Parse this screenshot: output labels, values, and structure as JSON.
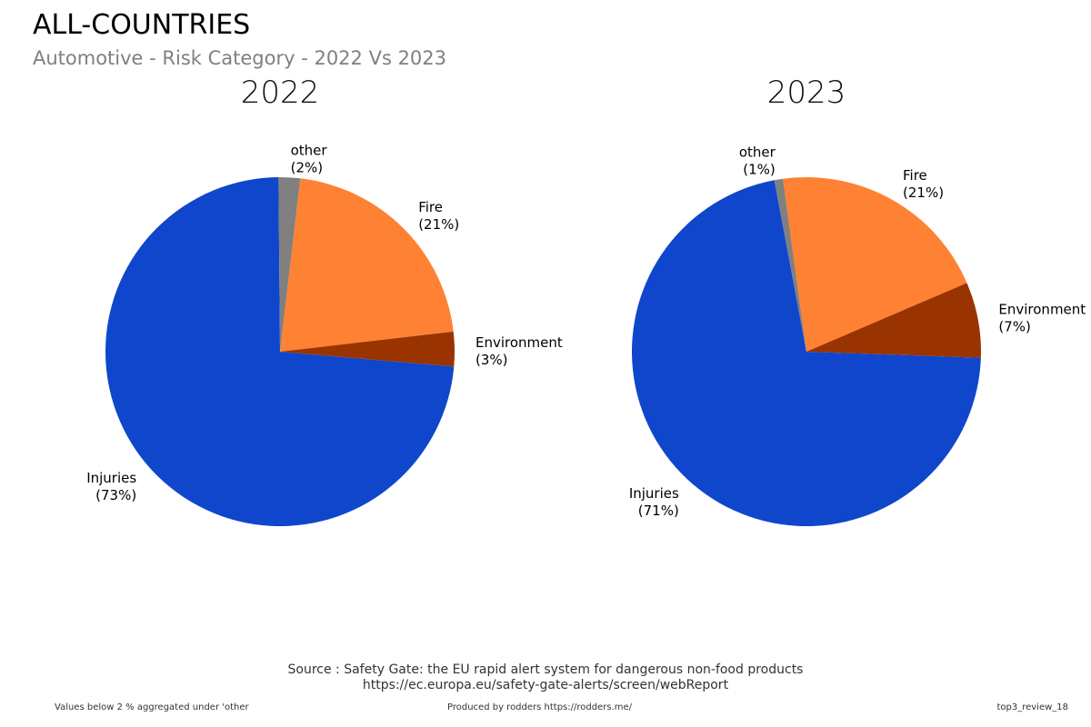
{
  "header": {
    "title": "ALL-COUNTRIES",
    "subtitle": "Automotive - Risk Category - 2022 Vs 2023"
  },
  "chart_data": [
    {
      "type": "pie",
      "title": "2022",
      "slices": [
        {
          "label": "Injuries",
          "pct_label": "(73%)",
          "value": 73.5,
          "color": "#0f46cc"
        },
        {
          "label": "other",
          "pct_label": "(2%)",
          "value": 2.0,
          "color": "#808080"
        },
        {
          "label": "Fire",
          "pct_label": "(21%)",
          "value": 21.3,
          "color": "#ff8133"
        },
        {
          "label": "Environment",
          "pct_label": "(3%)",
          "value": 3.2,
          "color": "#993300"
        }
      ]
    },
    {
      "type": "pie",
      "title": "2023",
      "slices": [
        {
          "label": "Injuries",
          "pct_label": "(71%)",
          "value": 71.5,
          "color": "#0f46cc"
        },
        {
          "label": "other",
          "pct_label": "(1%)",
          "value": 0.8,
          "color": "#808080"
        },
        {
          "label": "Fire",
          "pct_label": "(21%)",
          "value": 20.7,
          "color": "#ff8133"
        },
        {
          "label": "Environment",
          "pct_label": "(7%)",
          "value": 7.0,
          "color": "#993300"
        }
      ]
    }
  ],
  "footer": {
    "source_line1": "Source : Safety Gate: the EU rapid alert system for dangerous non-food products",
    "source_line2": "https://ec.europa.eu/safety-gate-alerts/screen/webReport",
    "note": "Values below 2 % aggregated under 'other",
    "produced_by": "Produced by rodders https://rodders.me/",
    "ref": "top3_review_18"
  }
}
